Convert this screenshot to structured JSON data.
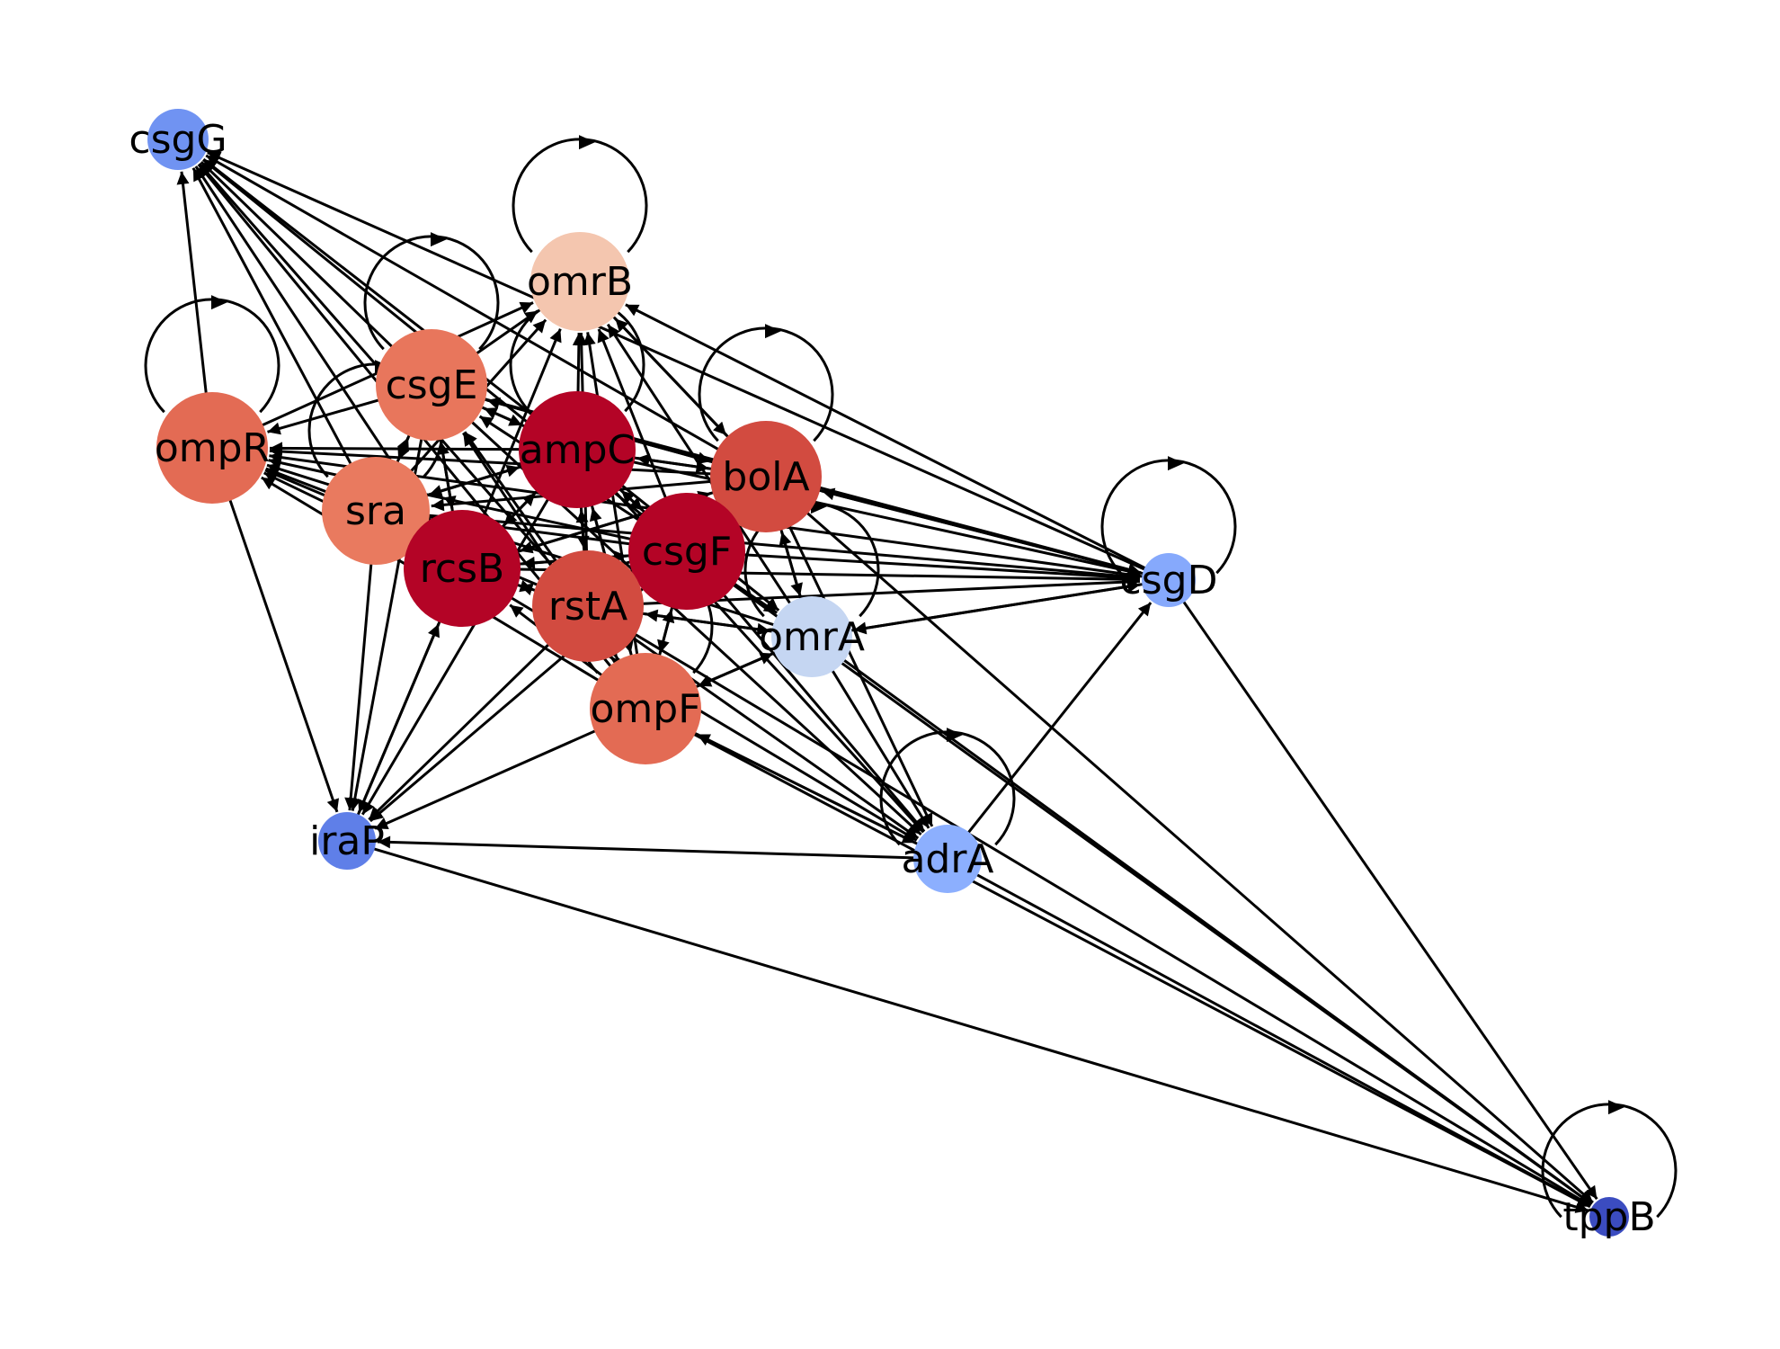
{
  "nodes": [
    {
      "id": "csgG",
      "label": "csgG",
      "color": "#7093f2"
    },
    {
      "id": "omrB",
      "label": "omrB",
      "color": "#f4c6af"
    },
    {
      "id": "csgE",
      "label": "csgE",
      "color": "#e8765c"
    },
    {
      "id": "ompR",
      "label": "ompR",
      "color": "#e36b54"
    },
    {
      "id": "ampC",
      "label": "ampC",
      "color": "#b40426"
    },
    {
      "id": "bolA",
      "label": "bolA",
      "color": "#d24b40"
    },
    {
      "id": "sra",
      "label": "sra",
      "color": "#e97a5f"
    },
    {
      "id": "rcsB",
      "label": "rcsB",
      "color": "#b40426"
    },
    {
      "id": "csgF",
      "label": "csgF",
      "color": "#b40426"
    },
    {
      "id": "rstA",
      "label": "rstA",
      "color": "#d24b40"
    },
    {
      "id": "csgD",
      "label": "csgD",
      "color": "#86a9fc"
    },
    {
      "id": "omrA",
      "label": "omrA",
      "color": "#c5d6f2"
    },
    {
      "id": "ompF",
      "label": "ompF",
      "color": "#e36b54"
    },
    {
      "id": "iraP",
      "label": "iraP",
      "color": "#5f7fe8"
    },
    {
      "id": "adrA",
      "label": "adrA",
      "color": "#8caffe"
    },
    {
      "id": "tppB",
      "label": "tppB",
      "color": "#3b4cc0"
    }
  ],
  "edges": [
    [
      "ompR",
      "csgG"
    ],
    [
      "csgE",
      "csgG"
    ],
    [
      "ampC",
      "csgG"
    ],
    [
      "bolA",
      "csgG"
    ],
    [
      "sra",
      "csgG"
    ],
    [
      "rcsB",
      "csgG"
    ],
    [
      "csgF",
      "csgG"
    ],
    [
      "rstA",
      "csgG"
    ],
    [
      "csgD",
      "csgG"
    ],
    [
      "ompF",
      "csgG"
    ],
    [
      "csgE",
      "omrB"
    ],
    [
      "ompR",
      "omrB"
    ],
    [
      "ampC",
      "omrB"
    ],
    [
      "bolA",
      "omrB"
    ],
    [
      "sra",
      "omrB"
    ],
    [
      "rcsB",
      "omrB"
    ],
    [
      "csgF",
      "omrB"
    ],
    [
      "rstA",
      "omrB"
    ],
    [
      "csgD",
      "omrB"
    ],
    [
      "omrA",
      "omrB"
    ],
    [
      "ompF",
      "omrB"
    ],
    [
      "ampC",
      "csgE"
    ],
    [
      "sra",
      "csgE"
    ],
    [
      "rcsB",
      "csgE"
    ],
    [
      "csgF",
      "csgE"
    ],
    [
      "rstA",
      "csgE"
    ],
    [
      "bolA",
      "csgE"
    ],
    [
      "ompF",
      "csgE"
    ],
    [
      "csgE",
      "ompR"
    ],
    [
      "ampC",
      "ompR"
    ],
    [
      "sra",
      "ompR"
    ],
    [
      "rcsB",
      "ompR"
    ],
    [
      "csgF",
      "ompR"
    ],
    [
      "rstA",
      "ompR"
    ],
    [
      "bolA",
      "ompR"
    ],
    [
      "csgD",
      "ompR"
    ],
    [
      "omrA",
      "ompR"
    ],
    [
      "ompF",
      "ompR"
    ],
    [
      "csgE",
      "ampC"
    ],
    [
      "rcsB",
      "ampC"
    ],
    [
      "csgF",
      "ampC"
    ],
    [
      "rstA",
      "ampC"
    ],
    [
      "ompF",
      "ampC"
    ],
    [
      "bolA",
      "ampC"
    ],
    [
      "sra",
      "ampC"
    ],
    [
      "ampC",
      "bolA"
    ],
    [
      "csgE",
      "bolA"
    ],
    [
      "csgF",
      "bolA"
    ],
    [
      "rstA",
      "bolA"
    ],
    [
      "omrB",
      "bolA"
    ],
    [
      "csgD",
      "bolA"
    ],
    [
      "omrA",
      "bolA"
    ],
    [
      "rcsB",
      "bolA"
    ],
    [
      "ampC",
      "sra"
    ],
    [
      "csgE",
      "sra"
    ],
    [
      "bolA",
      "sra"
    ],
    [
      "csgF",
      "sra"
    ],
    [
      "rcsB",
      "sra"
    ],
    [
      "ampC",
      "rcsB"
    ],
    [
      "csgF",
      "rcsB"
    ],
    [
      "rstA",
      "rcsB"
    ],
    [
      "ompF",
      "rcsB"
    ],
    [
      "bolA",
      "rcsB"
    ],
    [
      "csgE",
      "rcsB"
    ],
    [
      "ampC",
      "csgF"
    ],
    [
      "rstA",
      "csgF"
    ],
    [
      "rcsB",
      "csgF"
    ],
    [
      "bolA",
      "csgF"
    ],
    [
      "ompF",
      "csgF"
    ],
    [
      "csgF",
      "rstA"
    ],
    [
      "ampC",
      "rstA"
    ],
    [
      "rcsB",
      "rstA"
    ],
    [
      "ompF",
      "rstA"
    ],
    [
      "omrA",
      "rstA"
    ],
    [
      "ampC",
      "csgD"
    ],
    [
      "bolA",
      "csgD"
    ],
    [
      "csgF",
      "csgD"
    ],
    [
      "rstA",
      "csgD"
    ],
    [
      "rcsB",
      "csgD"
    ],
    [
      "sra",
      "csgD"
    ],
    [
      "omrA",
      "csgD"
    ],
    [
      "adrA",
      "csgD"
    ],
    [
      "csgE",
      "csgD"
    ],
    [
      "csgF",
      "omrA"
    ],
    [
      "rstA",
      "omrA"
    ],
    [
      "ampC",
      "omrA"
    ],
    [
      "bolA",
      "omrA"
    ],
    [
      "csgD",
      "omrA"
    ],
    [
      "ompF",
      "omrA"
    ],
    [
      "rstA",
      "ompF"
    ],
    [
      "ampC",
      "ompF"
    ],
    [
      "csgF",
      "ompF"
    ],
    [
      "adrA",
      "ompF"
    ],
    [
      "omrA",
      "ompF"
    ],
    [
      "ompR",
      "iraP"
    ],
    [
      "sra",
      "iraP"
    ],
    [
      "csgE",
      "iraP"
    ],
    [
      "ampC",
      "iraP"
    ],
    [
      "rcsB",
      "iraP"
    ],
    [
      "rstA",
      "iraP"
    ],
    [
      "csgF",
      "iraP"
    ],
    [
      "ompF",
      "iraP"
    ],
    [
      "adrA",
      "iraP"
    ],
    [
      "iraP",
      "rcsB"
    ],
    [
      "ampC",
      "adrA"
    ],
    [
      "csgF",
      "adrA"
    ],
    [
      "rstA",
      "adrA"
    ],
    [
      "rcsB",
      "adrA"
    ],
    [
      "bolA",
      "adrA"
    ],
    [
      "omrA",
      "adrA"
    ],
    [
      "ompF",
      "adrA"
    ],
    [
      "csgE",
      "adrA"
    ],
    [
      "iraP",
      "tppB"
    ],
    [
      "adrA",
      "tppB"
    ],
    [
      "csgD",
      "tppB"
    ],
    [
      "omrA",
      "tppB"
    ],
    [
      "csgF",
      "tppB"
    ],
    [
      "rstA",
      "tppB"
    ],
    [
      "ompF",
      "tppB"
    ],
    [
      "bolA",
      "tppB"
    ]
  ],
  "self_loops": [
    "omrB",
    "csgE",
    "ompR",
    "bolA",
    "csgD",
    "omrA",
    "ompF",
    "adrA",
    "tppB",
    "ampC",
    "sra"
  ]
}
